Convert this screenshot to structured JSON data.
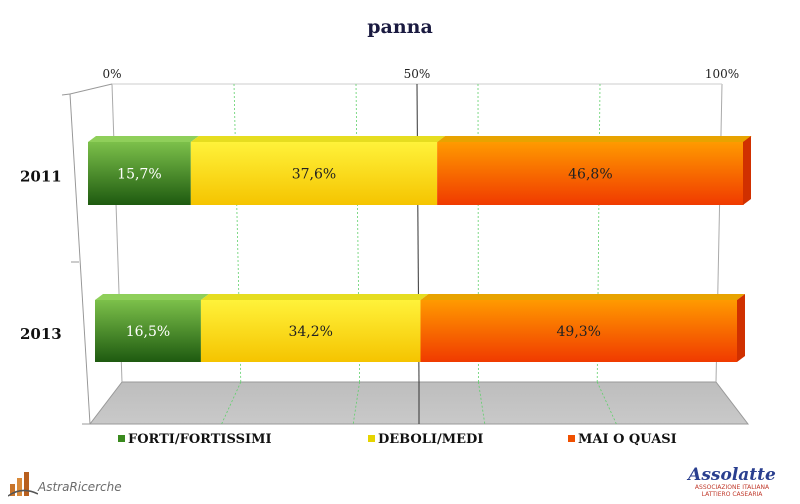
{
  "chart_data": {
    "type": "bar",
    "orientation": "horizontal-stacked-100",
    "title": "panna",
    "categories": [
      "2011",
      "2013"
    ],
    "series": [
      {
        "name": "FORTI/FORTISSIMI",
        "values": [
          15.7,
          16.5
        ],
        "labels": [
          "15,7%",
          "16,5%"
        ],
        "color": "#2e7d1a"
      },
      {
        "name": "DEBOLI/MEDI",
        "values": [
          37.6,
          34.2
        ],
        "labels": [
          "37,6%",
          "34,2%"
        ],
        "color": "#f2e000"
      },
      {
        "name": "MAI O QUASI",
        "values": [
          46.8,
          49.3
        ],
        "labels": [
          "46,8%",
          "49,3%"
        ],
        "color": "#f25a00"
      }
    ],
    "xticks": [
      "0%",
      "50%",
      "100%"
    ],
    "xlim": [
      0,
      100
    ],
    "grid": true,
    "legend_position": "bottom"
  },
  "logos": {
    "left": {
      "brand_a": "Astra",
      "brand_b": "Ricerche"
    },
    "right": {
      "name": "Assolatte",
      "sub_1": "ASSOCIAZIONE ITALIANA",
      "sub_2": "LATTIERO CASEARIA"
    }
  }
}
